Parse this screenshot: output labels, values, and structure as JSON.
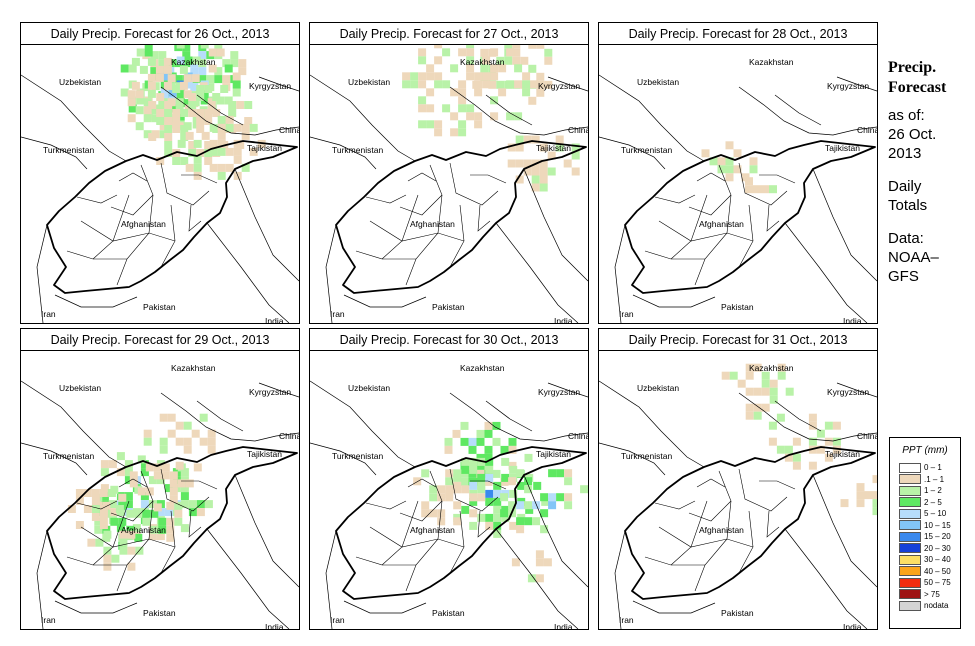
{
  "panels": [
    {
      "title": "Daily Precip. Forecast for  26 Oct., 2013",
      "precip": [
        [
          0.6,
          0.08,
          0.35,
          2
        ],
        [
          0.55,
          0.12,
          0.4,
          2
        ],
        [
          0.52,
          0.2,
          0.3,
          1
        ],
        [
          0.62,
          0.28,
          0.4,
          1
        ],
        [
          0.7,
          0.35,
          0.3,
          1
        ],
        [
          0.48,
          0.1,
          0.2,
          1
        ]
      ]
    },
    {
      "title": "Daily Precip. Forecast for  27 Oct., 2013",
      "precip": [
        [
          0.72,
          0.08,
          0.3,
          1
        ],
        [
          0.55,
          0.14,
          0.45,
          1
        ],
        [
          0.82,
          0.4,
          0.25,
          1
        ]
      ]
    },
    {
      "title": "Daily Precip. Forecast for  28 Oct., 2013",
      "precip": [
        [
          0.45,
          0.4,
          0.2,
          1
        ],
        [
          0.55,
          0.48,
          0.15,
          1
        ]
      ]
    },
    {
      "title": "Daily Precip. Forecast for  29 Oct., 2013",
      "precip": [
        [
          0.45,
          0.5,
          0.4,
          2
        ],
        [
          0.4,
          0.58,
          0.3,
          2
        ],
        [
          0.5,
          0.45,
          0.25,
          1
        ],
        [
          0.32,
          0.7,
          0.2,
          1
        ],
        [
          0.25,
          0.55,
          0.2,
          1
        ],
        [
          0.55,
          0.3,
          0.25,
          1
        ]
      ]
    },
    {
      "title": "Daily Precip. Forecast for  30 Oct., 2013",
      "precip": [
        [
          0.62,
          0.35,
          0.3,
          2
        ],
        [
          0.65,
          0.5,
          0.35,
          2
        ],
        [
          0.82,
          0.52,
          0.3,
          2
        ],
        [
          0.78,
          0.75,
          0.15,
          1
        ],
        [
          0.48,
          0.5,
          0.25,
          1
        ]
      ]
    },
    {
      "title": "Daily Precip. Forecast for  31 Oct., 2013",
      "precip": [
        [
          0.55,
          0.12,
          0.25,
          1
        ],
        [
          0.72,
          0.3,
          0.25,
          1
        ],
        [
          0.95,
          0.5,
          0.2,
          1
        ]
      ]
    }
  ],
  "map_labels": [
    "Kazakhstan",
    "Uzbekistan",
    "Kyrgyzstan",
    "China",
    "Turkmenistan",
    "Tajikistan",
    "Afghanistan",
    "Pakistan",
    "Iran",
    "India"
  ],
  "sidebar": {
    "title_line1": "Precip.",
    "title_line2": "Forecast",
    "asof_line1": "as of:",
    "asof_line2": "26 Oct.",
    "asof_line3": "2013",
    "totals_line1": "Daily",
    "totals_line2": "Totals",
    "source_line1": "Data:",
    "source_line2": "NOAA–",
    "source_line3": "GFS"
  },
  "legend": {
    "title": "PPT (mm)",
    "items": [
      {
        "label": "0 – 1",
        "color": "#ffffff"
      },
      {
        "label": ".1 – 1",
        "color": "#eed8bb"
      },
      {
        "label": "1 – 2",
        "color": "#b9f2a8"
      },
      {
        "label": "2 – 5",
        "color": "#5fe862"
      },
      {
        "label": "5 – 10",
        "color": "#b7ddfb"
      },
      {
        "label": "10 – 15",
        "color": "#82c5f7"
      },
      {
        "label": "15 – 20",
        "color": "#3a89ee"
      },
      {
        "label": "20 – 30",
        "color": "#1540d9"
      },
      {
        "label": "30 – 40",
        "color": "#fbde64"
      },
      {
        "label": "40 – 50",
        "color": "#fba41a"
      },
      {
        "label": "50 – 75",
        "color": "#f32d10"
      },
      {
        "label": "> 75",
        "color": "#9e1414"
      },
      {
        "label": "nodata",
        "color": "#d4d4d4"
      }
    ]
  }
}
